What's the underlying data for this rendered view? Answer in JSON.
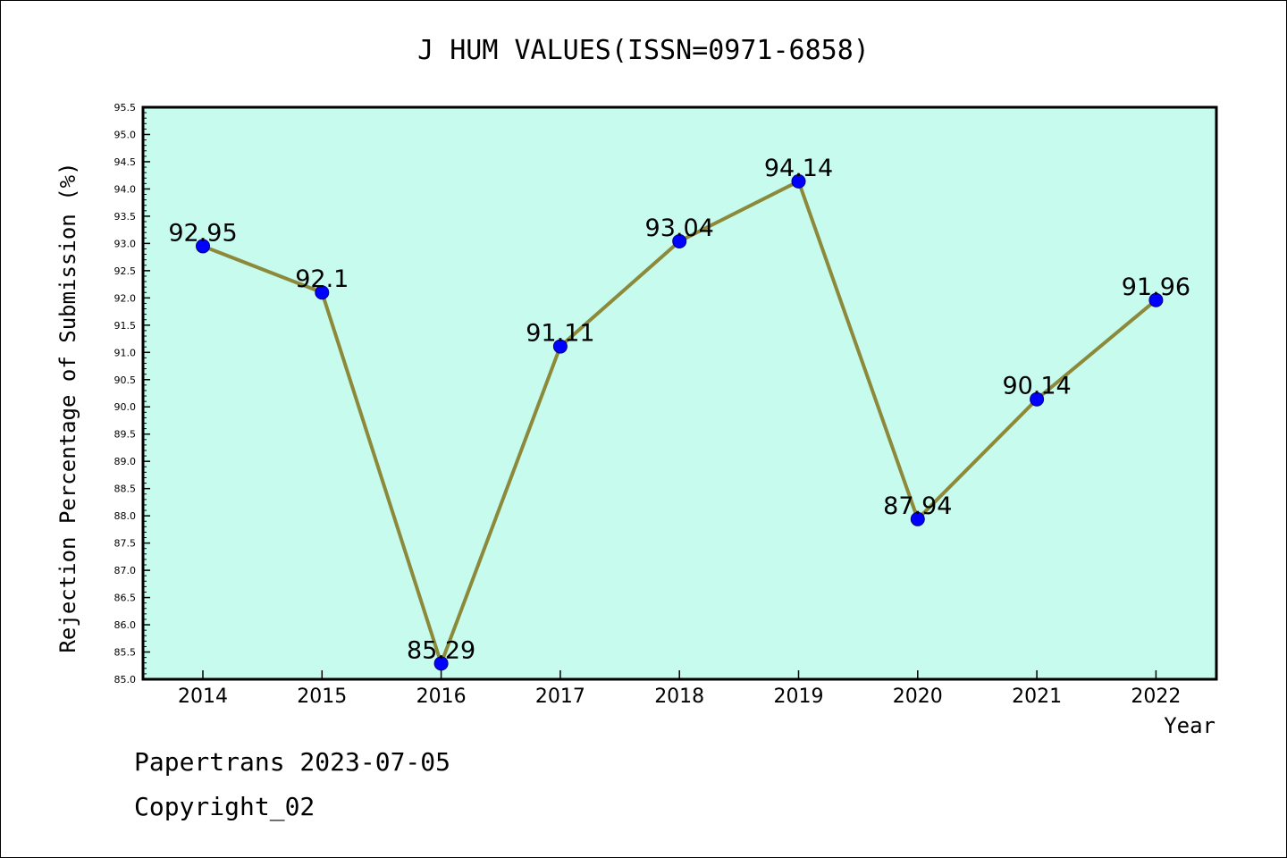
{
  "chart_data": {
    "type": "line",
    "title": "J HUM VALUES(ISSN=0971-6858)",
    "xlabel": "Year",
    "ylabel": "Rejection Percentage of Submission (%)",
    "categories": [
      "2014",
      "2015",
      "2016",
      "2017",
      "2018",
      "2019",
      "2020",
      "2021",
      "2022"
    ],
    "series": [
      {
        "values": [
          92.95,
          92.1,
          85.29,
          91.11,
          93.04,
          94.14,
          87.94,
          90.14,
          91.96
        ],
        "labels": [
          "92.95",
          "92.1",
          "85.29",
          "91.11",
          "93.04",
          "94.14",
          "87.94",
          "90.14",
          "91.96"
        ]
      }
    ],
    "ylim": [
      85.0,
      95.5
    ],
    "ytick_step": 0.5,
    "grid": false,
    "legend": "none",
    "colors": {
      "plot_background": "#c6fbee",
      "line": "#8c8a3a",
      "marker": "#0000ff",
      "marker_edge": "#000080"
    }
  },
  "footer": {
    "line1": "Papertrans 2023-07-05",
    "line2": "Copyright_02"
  }
}
